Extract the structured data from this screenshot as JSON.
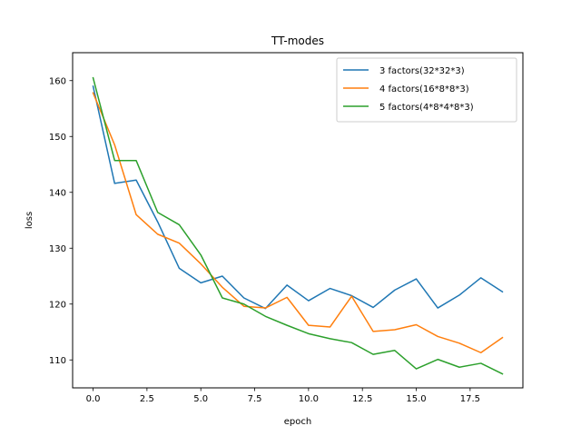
{
  "chart_data": {
    "type": "line",
    "title": "TT-modes",
    "xlabel": "epoch",
    "ylabel": "loss",
    "xlim": [
      -0.95,
      19.95
    ],
    "ylim": [
      105,
      165
    ],
    "xticks": [
      0,
      2.5,
      5,
      7.5,
      10,
      12.5,
      15,
      17.5
    ],
    "xtick_labels": [
      "0.0",
      "2.5",
      "5.0",
      "7.5",
      "10.0",
      "12.5",
      "15.0",
      "17.5"
    ],
    "yticks": [
      110,
      120,
      130,
      140,
      150,
      160
    ],
    "ytick_labels": [
      "110",
      "120",
      "130",
      "140",
      "150",
      "160"
    ],
    "grid": false,
    "legend_position": "top-right",
    "x": [
      0,
      1,
      2,
      3,
      4,
      5,
      6,
      7,
      8,
      9,
      10,
      11,
      12,
      13,
      14,
      15,
      16,
      17,
      18,
      19
    ],
    "series": [
      {
        "name": "3 factors(32*32*3)",
        "color": "#1f77b4",
        "values": [
          159.0,
          141.6,
          142.2,
          134.7,
          126.4,
          123.8,
          125.0,
          121.1,
          119.2,
          123.4,
          120.6,
          122.8,
          121.5,
          119.4,
          122.5,
          124.5,
          119.3,
          121.6,
          124.7,
          122.2
        ]
      },
      {
        "name": "4 factors(16*8*8*3)",
        "color": "#ff7f0e",
        "values": [
          157.8,
          148.5,
          136.0,
          132.5,
          130.9,
          127.2,
          123.0,
          119.6,
          119.3,
          121.2,
          116.2,
          115.9,
          121.4,
          115.1,
          115.4,
          116.3,
          114.2,
          113.0,
          111.3,
          114.0
        ]
      },
      {
        "name": "5 factors(4*8*4*8*3)",
        "color": "#2ca02c",
        "values": [
          160.5,
          145.7,
          145.7,
          136.4,
          134.2,
          128.8,
          121.1,
          120.0,
          117.8,
          116.2,
          114.7,
          113.8,
          113.1,
          111.0,
          111.7,
          108.4,
          110.1,
          108.7,
          109.4,
          107.5
        ]
      }
    ]
  }
}
